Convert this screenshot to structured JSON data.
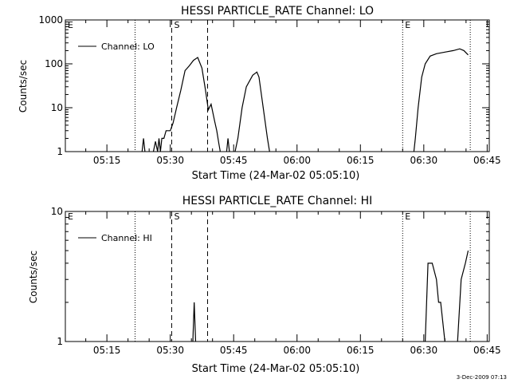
{
  "footer": {
    "timestamp": "3-Dec-2009 07:13"
  },
  "chart_data": [
    {
      "type": "line",
      "title": "HESSI PARTICLE_RATE Channel: LO",
      "xlabel": "Start Time (24-Mar-02 05:05:10)",
      "ylabel": "Counts/sec",
      "yscale": "log",
      "xlim": [
        "05:05:10",
        "06:45:30"
      ],
      "ylim": [
        1,
        1000
      ],
      "x_ticks": [
        "05:15",
        "05:30",
        "05:45",
        "06:00",
        "06:15",
        "06:30",
        "06:45"
      ],
      "y_ticks": [
        "1",
        "10",
        "100",
        "1000"
      ],
      "legend": {
        "entries": [
          "Channel: LO"
        ],
        "placement": "top-left"
      },
      "markers": [
        {
          "label": "E",
          "time": "05:05:10",
          "style": "dotted"
        },
        {
          "label": "",
          "time": "05:21:40",
          "style": "dotted"
        },
        {
          "label": "S",
          "time": "05:30:20",
          "style": "dashed"
        },
        {
          "label": "",
          "time": "05:38:50",
          "style": "dashed"
        },
        {
          "label": "E",
          "time": "06:25:00",
          "style": "dotted"
        },
        {
          "label": "",
          "time": "06:41:00",
          "style": "dotted"
        }
      ],
      "series": [
        {
          "name": "Channel: LO",
          "segments": [
            [
              [
                "05:23:20",
                1
              ],
              [
                "05:23:40",
                2
              ],
              [
                "05:24:00",
                1
              ]
            ],
            [
              [
                "05:26:00",
                1
              ],
              [
                "05:26:30",
                1.7
              ],
              [
                "05:27:00",
                1
              ],
              [
                "05:27:20",
                2
              ],
              [
                "05:27:40",
                1
              ],
              [
                "05:28:00",
                2
              ],
              [
                "05:28:30",
                2
              ],
              [
                "05:29:00",
                3
              ],
              [
                "05:30:00",
                3
              ],
              [
                "05:30:40",
                4.5
              ],
              [
                "05:31:30",
                10
              ],
              [
                "05:32:30",
                25
              ],
              [
                "05:33:30",
                70
              ],
              [
                "05:34:30",
                90
              ],
              [
                "05:35:30",
                120
              ],
              [
                "05:36:30",
                140
              ],
              [
                "05:37:30",
                80
              ],
              [
                "05:38:20",
                25
              ],
              [
                "05:39:00",
                9
              ],
              [
                "05:39:40",
                12
              ],
              [
                "05:40:30",
                5
              ],
              [
                "05:41:00",
                3
              ],
              [
                "05:41:30",
                1.5
              ],
              [
                "05:41:50",
                1
              ]
            ],
            [
              [
                "05:43:20",
                1
              ],
              [
                "05:43:40",
                2
              ],
              [
                "05:44:00",
                1
              ]
            ],
            [
              [
                "05:45:20",
                1
              ],
              [
                "05:46:00",
                2
              ],
              [
                "05:47:00",
                10
              ],
              [
                "05:48:00",
                30
              ],
              [
                "05:49:30",
                55
              ],
              [
                "05:50:30",
                65
              ],
              [
                "05:51:00",
                50
              ],
              [
                "05:52:00",
                10
              ],
              [
                "05:53:00",
                2
              ],
              [
                "05:53:30",
                1
              ]
            ],
            [
              [
                "06:27:40",
                1
              ],
              [
                "06:28:00",
                2
              ],
              [
                "06:28:40",
                10
              ],
              [
                "06:29:30",
                50
              ],
              [
                "06:30:20",
                100
              ],
              [
                "06:31:30",
                150
              ],
              [
                "06:33:00",
                170
              ],
              [
                "06:35:00",
                185
              ],
              [
                "06:37:00",
                200
              ],
              [
                "06:38:30",
                220
              ],
              [
                "06:39:30",
                200
              ],
              [
                "06:40:30",
                160
              ]
            ]
          ]
        }
      ]
    },
    {
      "type": "line",
      "title": "HESSI PARTICLE_RATE Channel: HI",
      "xlabel": "Start Time (24-Mar-02 05:05:10)",
      "ylabel": "Counts/sec",
      "yscale": "log",
      "xlim": [
        "05:05:10",
        "06:45:30"
      ],
      "ylim": [
        1,
        10
      ],
      "x_ticks": [
        "05:15",
        "05:30",
        "05:45",
        "06:00",
        "06:15",
        "06:30",
        "06:45"
      ],
      "y_ticks": [
        "1",
        "10"
      ],
      "legend": {
        "entries": [
          "Channel: HI"
        ],
        "placement": "top-left"
      },
      "markers": [
        {
          "label": "E",
          "time": "05:05:10",
          "style": "dotted"
        },
        {
          "label": "",
          "time": "05:21:40",
          "style": "dotted"
        },
        {
          "label": "S",
          "time": "05:30:20",
          "style": "dashed"
        },
        {
          "label": "",
          "time": "05:38:50",
          "style": "dashed"
        },
        {
          "label": "E",
          "time": "06:25:00",
          "style": "dotted"
        },
        {
          "label": "",
          "time": "06:41:00",
          "style": "dotted"
        }
      ],
      "series": [
        {
          "name": "Channel: HI",
          "segments": [
            [
              [
                "05:35:20",
                1
              ],
              [
                "05:35:40",
                2
              ],
              [
                "05:36:00",
                1
              ]
            ],
            [
              [
                "06:30:20",
                1
              ],
              [
                "06:31:00",
                4
              ],
              [
                "06:32:00",
                4
              ],
              [
                "06:33:00",
                3
              ],
              [
                "06:33:30",
                2
              ],
              [
                "06:34:00",
                2
              ],
              [
                "06:35:00",
                1
              ]
            ],
            [
              [
                "06:38:00",
                1
              ],
              [
                "06:38:50",
                3
              ],
              [
                "06:39:50",
                4
              ],
              [
                "06:40:30",
                5
              ]
            ]
          ]
        }
      ]
    }
  ]
}
